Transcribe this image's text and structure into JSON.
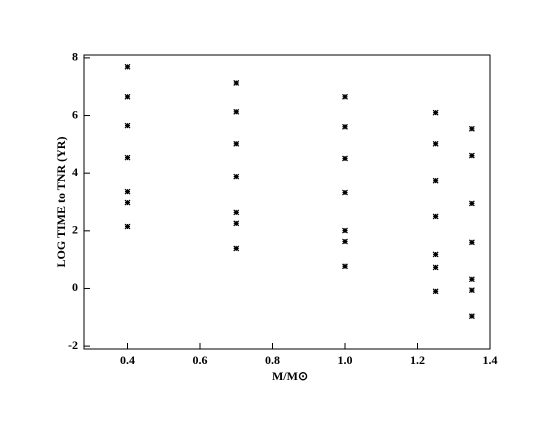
{
  "chart_data": {
    "type": "scatter",
    "x_label": "M/M⊙",
    "y_label": "LOG TIME to TNR (YR)",
    "xlim": [
      0.28,
      1.4
    ],
    "ylim": [
      -2.1,
      8.1
    ],
    "xticks": [
      0.4,
      0.6,
      0.8,
      {
        "value": 1,
        "label": "1.0"
      },
      1.2,
      1.4
    ],
    "yticks": [
      -2,
      0,
      2,
      4,
      6,
      8
    ],
    "color": "#000000",
    "x": [
      0.4,
      0.4,
      0.4,
      0.4,
      0.4,
      0.4,
      0.4,
      0.7,
      0.7,
      0.7,
      0.7,
      0.7,
      0.7,
      0.7,
      1.0,
      1.0,
      1.0,
      1.0,
      1.0,
      1.0,
      1.0,
      1.25,
      1.25,
      1.25,
      1.25,
      1.25,
      1.25,
      1.25,
      1.35,
      1.35,
      1.35,
      1.35,
      1.35,
      1.35,
      1.35
    ],
    "y": [
      7.69,
      6.65,
      5.65,
      4.54,
      3.36,
      2.98,
      2.15,
      7.13,
      6.13,
      5.02,
      3.88,
      2.64,
      2.26,
      1.39,
      6.65,
      5.61,
      4.51,
      3.33,
      2.01,
      1.63,
      0.77,
      6.1,
      5.02,
      3.74,
      2.5,
      1.18,
      0.73,
      -0.1,
      5.54,
      4.61,
      2.95,
      1.6,
      0.32,
      -0.06,
      -0.96
    ]
  }
}
